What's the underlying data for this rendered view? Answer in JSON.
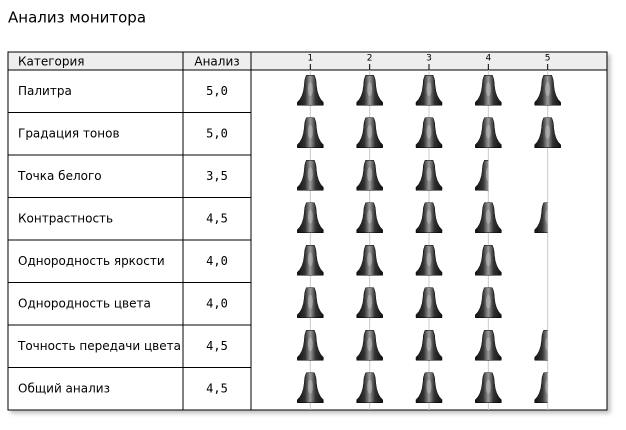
{
  "chart_data": {
    "type": "pictograph",
    "title": "Анализ монитора",
    "category_header": "Категория",
    "value_header": "Анализ",
    "categories": [
      "Палитра",
      "Градация тонов",
      "Точка белого",
      "Контрастность",
      "Однородность яркости",
      "Однородность цвета",
      "Точность передачи цвета",
      "Общий анализ"
    ],
    "values": [
      5,
      5,
      3.5,
      4.5,
      4,
      4,
      4.5,
      4.5
    ],
    "value_labels": [
      "5,0",
      "5,0",
      "3,5",
      "4,5",
      "4,0",
      "4,0",
      "4,5",
      "4,5"
    ],
    "xlim": [
      0,
      6
    ],
    "xticks": [
      1,
      2,
      3,
      4,
      5
    ],
    "grid": true,
    "color": "#000000"
  }
}
